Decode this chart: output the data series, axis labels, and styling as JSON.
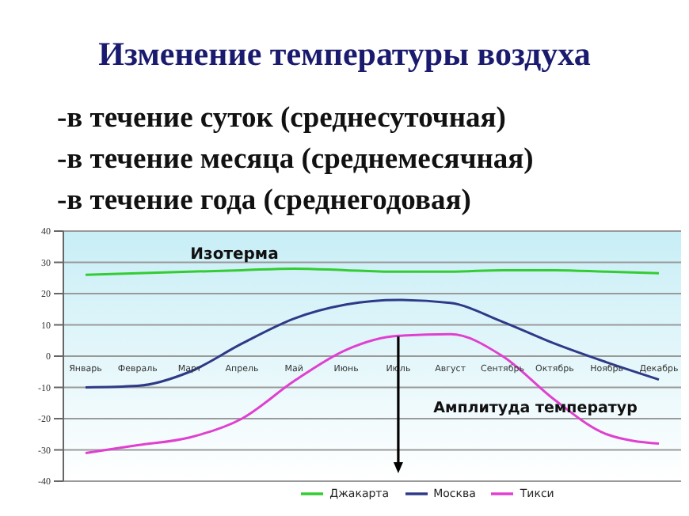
{
  "chart_data": {
    "type": "line",
    "title": "Изменение температуры воздуха",
    "subtitle": "-в течение суток  (среднесуточная)\n-в течение месяца (среднемесячная)\n-в течение года (среднегодовая)",
    "categories": [
      "Январь",
      "Февраль",
      "Март",
      "Апрель",
      "Май",
      "Июнь",
      "Июль",
      "Август",
      "Сентябрь",
      "Октябрь",
      "Ноябрь",
      "Декабрь"
    ],
    "series": [
      {
        "name": "Москва",
        "color": "#2e3a87",
        "values": [
          -10,
          -9.5,
          -5,
          4,
          12,
          16.5,
          18,
          17,
          11,
          4,
          -2,
          -7.5
        ]
      },
      {
        "name": "Тикси",
        "color": "#e040d0",
        "values": [
          -31,
          -28.5,
          -26,
          -20,
          -8,
          2,
          6.5,
          7,
          0,
          -14,
          -25,
          -28
        ]
      },
      {
        "name": "Джакарта",
        "color": "#33cc33",
        "values": [
          26,
          26.5,
          27,
          27.5,
          28,
          27.5,
          27,
          27,
          27.5,
          27.5,
          27,
          26.5
        ]
      }
    ],
    "annotations": [
      "Изотерма",
      "Амплитуда температур"
    ],
    "ylim": [
      -40,
      40
    ],
    "yticks": [
      -40,
      -30,
      -20,
      -10,
      0,
      10,
      20,
      30,
      40
    ],
    "grid": "y",
    "legend": "bottom",
    "marker": "none",
    "line_style": "solid"
  }
}
